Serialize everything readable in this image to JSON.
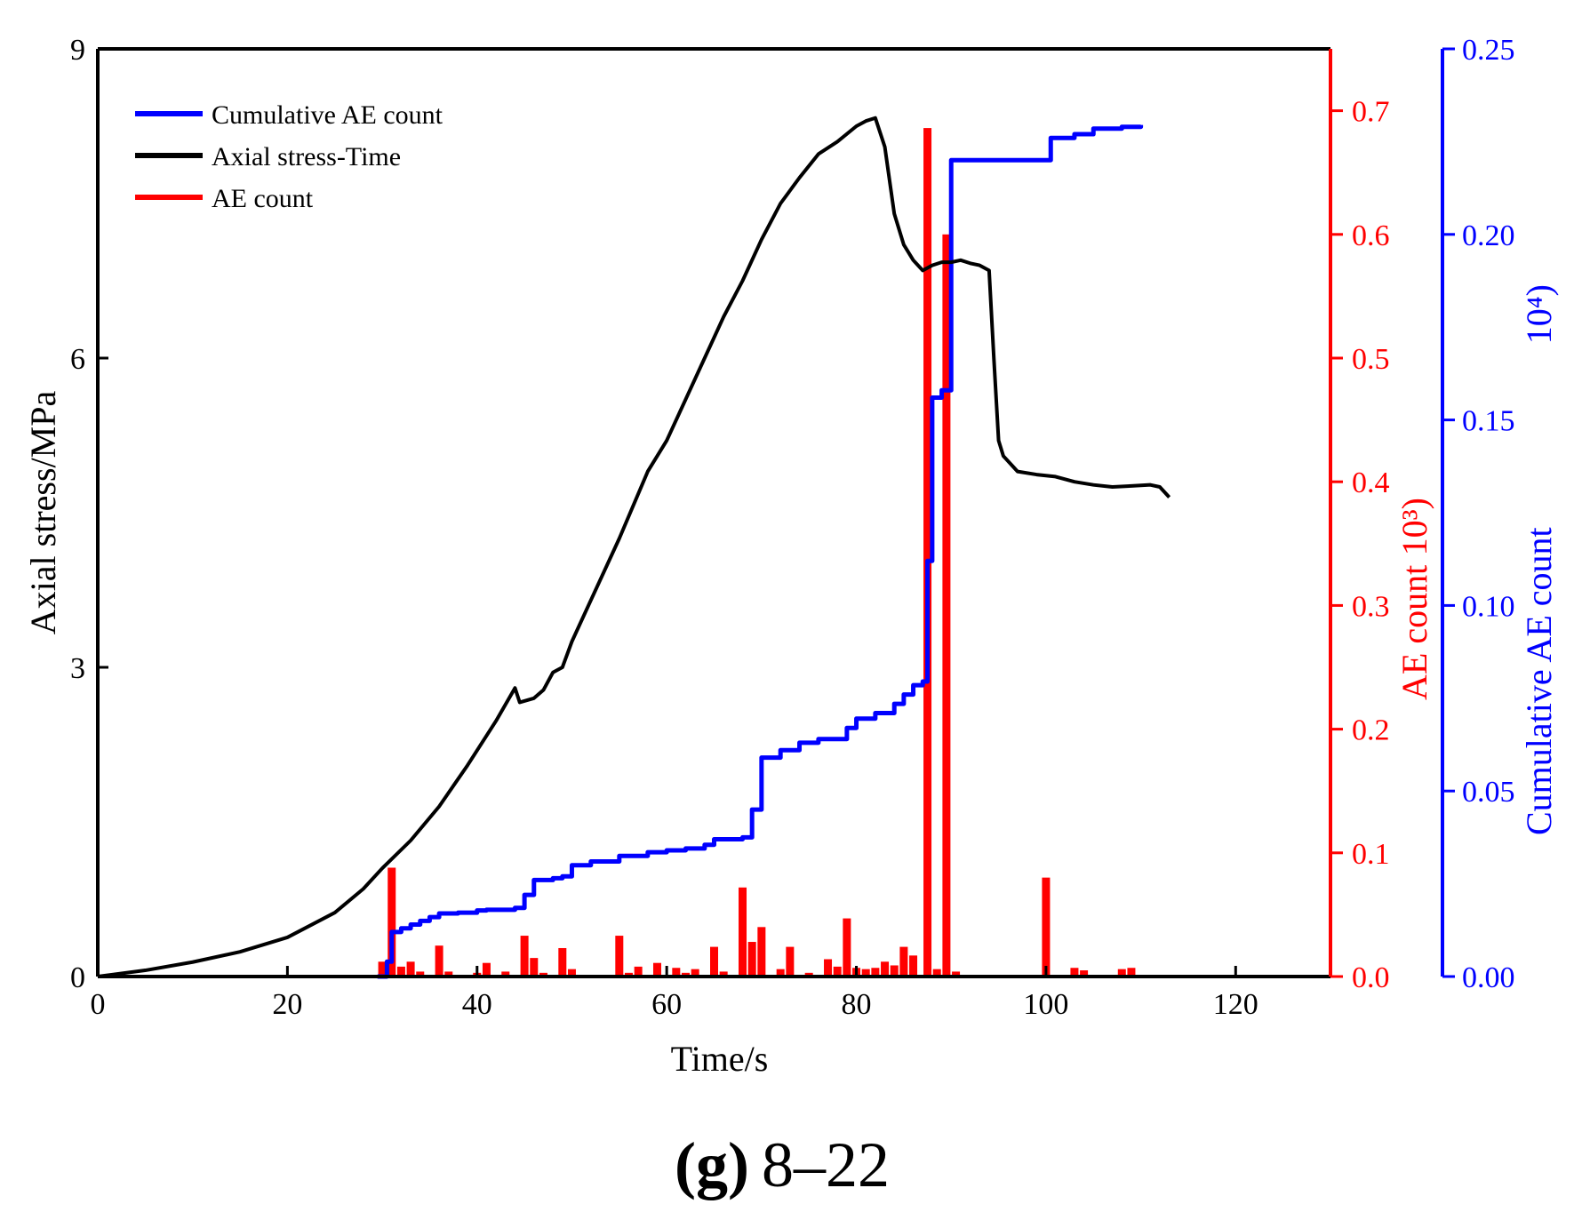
{
  "chart_data": {
    "type": "combo",
    "caption": {
      "bold": "(g)",
      "rest": "8–22"
    },
    "x_axis": {
      "label": "Time/s",
      "range": [
        0,
        130
      ],
      "ticks": [
        0,
        20,
        40,
        60,
        80,
        100,
        120
      ]
    },
    "y_left": {
      "label": "Axial stress/MPa",
      "range": [
        0,
        9
      ],
      "ticks": [
        0,
        3,
        6,
        9
      ],
      "color": "#000000"
    },
    "y_right_1": {
      "label": "AE count",
      "unit": "10³",
      "range": [
        0,
        0.75
      ],
      "ticks": [
        "0.0",
        "0.1",
        "0.2",
        "0.3",
        "0.4",
        "0.5",
        "0.6",
        "0.7"
      ],
      "color": "#ff0000"
    },
    "y_right_2": {
      "label": "Cumulative AE count",
      "unit": "10⁴",
      "range": [
        0,
        0.25
      ],
      "ticks": [
        "0.00",
        "0.05",
        "0.10",
        "0.15",
        "0.20",
        "0.25"
      ],
      "color": "#0000ff"
    },
    "legend": [
      {
        "label": "Cumulative AE count",
        "color": "#0000ff"
      },
      {
        "label": "Axial stress-Time",
        "color": "#000000"
      },
      {
        "label": "AE count",
        "color": "#ff0000"
      }
    ],
    "series": [
      {
        "name": "Axial stress-Time",
        "type": "line",
        "axis": "y_left",
        "color": "#000000",
        "points": [
          [
            0,
            0
          ],
          [
            5,
            0.06
          ],
          [
            10,
            0.14
          ],
          [
            15,
            0.24
          ],
          [
            20,
            0.38
          ],
          [
            25,
            0.62
          ],
          [
            28,
            0.85
          ],
          [
            30,
            1.05
          ],
          [
            33,
            1.32
          ],
          [
            36,
            1.65
          ],
          [
            39,
            2.05
          ],
          [
            42,
            2.48
          ],
          [
            44,
            2.8
          ],
          [
            44.5,
            2.66
          ],
          [
            46,
            2.7
          ],
          [
            47,
            2.78
          ],
          [
            48,
            2.95
          ],
          [
            49,
            3.0
          ],
          [
            50,
            3.25
          ],
          [
            52,
            3.65
          ],
          [
            55,
            4.25
          ],
          [
            58,
            4.9
          ],
          [
            60,
            5.2
          ],
          [
            62,
            5.6
          ],
          [
            64,
            6.0
          ],
          [
            66,
            6.4
          ],
          [
            68,
            6.75
          ],
          [
            70,
            7.15
          ],
          [
            72,
            7.5
          ],
          [
            74,
            7.75
          ],
          [
            76,
            7.98
          ],
          [
            78,
            8.1
          ],
          [
            80,
            8.25
          ],
          [
            81,
            8.3
          ],
          [
            82,
            8.33
          ],
          [
            83,
            8.05
          ],
          [
            84,
            7.4
          ],
          [
            85,
            7.1
          ],
          [
            86,
            6.95
          ],
          [
            87,
            6.85
          ],
          [
            88,
            6.9
          ],
          [
            89,
            6.93
          ],
          [
            90,
            6.93
          ],
          [
            91,
            6.95
          ],
          [
            92,
            6.92
          ],
          [
            93,
            6.9
          ],
          [
            94,
            6.85
          ],
          [
            94.5,
            6.0
          ],
          [
            95,
            5.2
          ],
          [
            95.5,
            5.05
          ],
          [
            97,
            4.9
          ],
          [
            99,
            4.87
          ],
          [
            101,
            4.85
          ],
          [
            103,
            4.8
          ],
          [
            105,
            4.77
          ],
          [
            107,
            4.75
          ],
          [
            109,
            4.76
          ],
          [
            111,
            4.77
          ],
          [
            112,
            4.75
          ],
          [
            113,
            4.65
          ]
        ]
      },
      {
        "name": "Cumulative AE count",
        "type": "step-line",
        "axis": "y_right_2",
        "color": "#0000ff",
        "points": [
          [
            29.5,
            0.0
          ],
          [
            30.5,
            0.004
          ],
          [
            31,
            0.012
          ],
          [
            32,
            0.013
          ],
          [
            33,
            0.014
          ],
          [
            34,
            0.015
          ],
          [
            35,
            0.016
          ],
          [
            36,
            0.017
          ],
          [
            38,
            0.0172
          ],
          [
            40,
            0.0178
          ],
          [
            41,
            0.018
          ],
          [
            44,
            0.0185
          ],
          [
            45,
            0.022
          ],
          [
            46,
            0.026
          ],
          [
            48,
            0.0265
          ],
          [
            49,
            0.027
          ],
          [
            50,
            0.03
          ],
          [
            52,
            0.031
          ],
          [
            55,
            0.0325
          ],
          [
            58,
            0.0335
          ],
          [
            60,
            0.034
          ],
          [
            62,
            0.0345
          ],
          [
            64,
            0.0355
          ],
          [
            65,
            0.037
          ],
          [
            68,
            0.0375
          ],
          [
            69,
            0.045
          ],
          [
            70,
            0.059
          ],
          [
            72,
            0.061
          ],
          [
            74,
            0.063
          ],
          [
            76,
            0.064
          ],
          [
            78,
            0.064
          ],
          [
            79,
            0.067
          ],
          [
            80,
            0.0695
          ],
          [
            82,
            0.071
          ],
          [
            84,
            0.0735
          ],
          [
            85,
            0.076
          ],
          [
            86,
            0.0785
          ],
          [
            87,
            0.0795
          ],
          [
            87.5,
            0.112
          ],
          [
            88,
            0.156
          ],
          [
            89,
            0.158
          ],
          [
            90,
            0.22
          ],
          [
            92,
            0.22
          ],
          [
            100,
            0.22
          ],
          [
            100.5,
            0.226
          ],
          [
            103,
            0.227
          ],
          [
            105,
            0.2285
          ],
          [
            108,
            0.229
          ],
          [
            110,
            0.2295
          ]
        ]
      },
      {
        "name": "AE count",
        "type": "bar",
        "axis": "y_right_1",
        "color": "#ff0000",
        "bars": [
          [
            30,
            0.012
          ],
          [
            31,
            0.088
          ],
          [
            32,
            0.008
          ],
          [
            33,
            0.012
          ],
          [
            34,
            0.004
          ],
          [
            36,
            0.025
          ],
          [
            37,
            0.004
          ],
          [
            40,
            0.003
          ],
          [
            41,
            0.011
          ],
          [
            43,
            0.004
          ],
          [
            45,
            0.033
          ],
          [
            46,
            0.015
          ],
          [
            47,
            0.003
          ],
          [
            49,
            0.023
          ],
          [
            50,
            0.006
          ],
          [
            55,
            0.033
          ],
          [
            56,
            0.003
          ],
          [
            57,
            0.008
          ],
          [
            59,
            0.011
          ],
          [
            61,
            0.007
          ],
          [
            62,
            0.003
          ],
          [
            63,
            0.006
          ],
          [
            65,
            0.024
          ],
          [
            66,
            0.004
          ],
          [
            68,
            0.072
          ],
          [
            69,
            0.028
          ],
          [
            70,
            0.04
          ],
          [
            72,
            0.006
          ],
          [
            73,
            0.024
          ],
          [
            75,
            0.003
          ],
          [
            77,
            0.014
          ],
          [
            78,
            0.008
          ],
          [
            79,
            0.047
          ],
          [
            80,
            0.007
          ],
          [
            81,
            0.006
          ],
          [
            82,
            0.007
          ],
          [
            83,
            0.012
          ],
          [
            84,
            0.009
          ],
          [
            85,
            0.024
          ],
          [
            86,
            0.017
          ],
          [
            87.5,
            0.686
          ],
          [
            88.5,
            0.006
          ],
          [
            89.5,
            0.6
          ],
          [
            90.5,
            0.004
          ],
          [
            100,
            0.08
          ],
          [
            103,
            0.007
          ],
          [
            104,
            0.005
          ],
          [
            108,
            0.006
          ],
          [
            109,
            0.007
          ]
        ]
      }
    ]
  }
}
